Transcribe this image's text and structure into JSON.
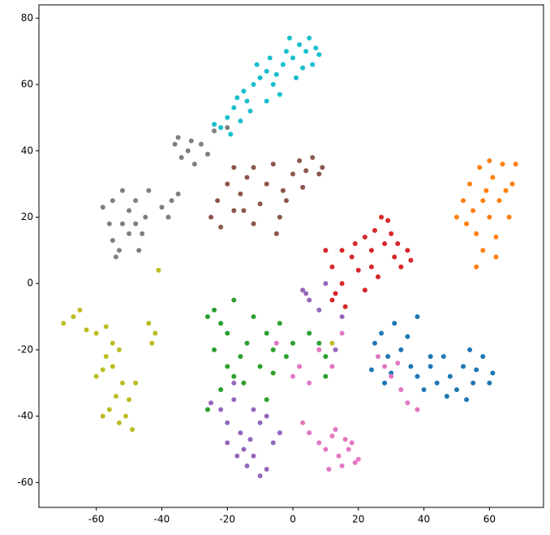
{
  "chart_data": {
    "type": "scatter",
    "xlim": [
      -77.5,
      76.5
    ],
    "ylim": [
      -67.5,
      84
    ],
    "xticks": [
      -60,
      -40,
      -20,
      0,
      20,
      40,
      60
    ],
    "yticks": [
      -60,
      -40,
      -20,
      0,
      20,
      40,
      60,
      80
    ],
    "grid": false,
    "series": [
      {
        "color": "#17becf",
        "x": [
          -22,
          -20,
          -18,
          -17,
          -15,
          -14,
          -12,
          -10,
          -11,
          -8,
          -7,
          -6,
          -5,
          -3,
          -2,
          0,
          2,
          3,
          4,
          5,
          7,
          8,
          1,
          -4,
          -8,
          -13,
          -16,
          -1,
          6,
          -19,
          -24
        ],
        "values": [
          47,
          50,
          53,
          56,
          58,
          55,
          60,
          62,
          66,
          64,
          68,
          60,
          63,
          66,
          70,
          68,
          72,
          65,
          70,
          74,
          71,
          69,
          62,
          57,
          55,
          52,
          49,
          74,
          66,
          45,
          48
        ]
      },
      {
        "color": "#8c564b",
        "x": [
          -25,
          -23,
          -20,
          -18,
          -16,
          -14,
          -12,
          -10,
          -8,
          -6,
          -4,
          -5,
          -3,
          0,
          2,
          4,
          6,
          8,
          9,
          -12,
          -22,
          -18,
          -2,
          3,
          -15
        ],
        "values": [
          20,
          25,
          30,
          22,
          27,
          32,
          35,
          24,
          30,
          36,
          20,
          15,
          28,
          33,
          37,
          34,
          38,
          33,
          35,
          18,
          17,
          35,
          25,
          29,
          22
        ]
      },
      {
        "color": "#7f7f7f",
        "x": [
          -58,
          -56,
          -55,
          -54,
          -52,
          -50,
          -50,
          -48,
          -47,
          -45,
          -44,
          -52,
          -48,
          -55,
          -53,
          -46,
          -40,
          -37,
          -35,
          -38,
          -36,
          -34,
          -32,
          -30,
          -28,
          -26,
          -24,
          -20,
          -35,
          -31
        ],
        "values": [
          23,
          18,
          13,
          8,
          28,
          22,
          15,
          25,
          10,
          20,
          28,
          18,
          18,
          25,
          10,
          15,
          23,
          25,
          27,
          20,
          42,
          38,
          40,
          36,
          42,
          39,
          46,
          47,
          44,
          43
        ]
      },
      {
        "color": "#ff7f0e",
        "x": [
          50,
          52,
          54,
          55,
          56,
          57,
          58,
          59,
          60,
          61,
          62,
          63,
          64,
          65,
          66,
          67,
          68,
          62,
          58,
          53,
          56,
          60
        ],
        "values": [
          20,
          25,
          30,
          22,
          15,
          35,
          10,
          28,
          20,
          32,
          14,
          25,
          36,
          28,
          20,
          30,
          36,
          8,
          25,
          18,
          5,
          37
        ]
      },
      {
        "color": "#d62728",
        "x": [
          10,
          12,
          13,
          15,
          15,
          18,
          20,
          22,
          24,
          25,
          27,
          28,
          30,
          31,
          33,
          35,
          36,
          26,
          22,
          19,
          29,
          16,
          12,
          24,
          32
        ],
        "values": [
          10,
          5,
          -3,
          0,
          10,
          8,
          4,
          14,
          10,
          16,
          20,
          12,
          15,
          8,
          5,
          10,
          7,
          2,
          -2,
          12,
          19,
          -7,
          -5,
          5,
          12
        ]
      },
      {
        "color": "#1f77b4",
        "x": [
          38,
          40,
          42,
          44,
          46,
          48,
          50,
          52,
          54,
          55,
          56,
          58,
          60,
          61,
          53,
          47,
          42,
          25,
          27,
          29,
          31,
          33,
          35,
          36,
          30,
          24,
          28,
          38
        ],
        "values": [
          -28,
          -32,
          -25,
          -30,
          -22,
          -28,
          -32,
          -25,
          -20,
          -30,
          -26,
          -22,
          -30,
          -27,
          -35,
          -34,
          -22,
          -18,
          -15,
          -22,
          -12,
          -20,
          -16,
          -25,
          -27,
          -26,
          -30,
          -10
        ]
      },
      {
        "color": "#e377c2",
        "x": [
          5,
          8,
          10,
          12,
          14,
          15,
          17,
          18,
          19,
          20,
          11,
          16,
          13,
          3,
          0,
          2,
          5,
          8,
          -5,
          26,
          28,
          30,
          33,
          35,
          38,
          32,
          12,
          15
        ],
        "values": [
          -45,
          -48,
          -50,
          -46,
          -52,
          -55,
          -50,
          -48,
          -54,
          -53,
          -56,
          -47,
          -44,
          -42,
          -28,
          -25,
          -30,
          -20,
          -18,
          -22,
          -25,
          -28,
          -32,
          -36,
          -38,
          -24,
          -25,
          -15
        ]
      },
      {
        "color": "#9467bd",
        "x": [
          -22,
          -20,
          -18,
          -16,
          -15,
          -14,
          -12,
          -10,
          -8,
          -6,
          -10,
          -12,
          -17,
          -13,
          -8,
          -4,
          -20,
          -18,
          -25,
          3,
          5,
          8,
          4,
          10,
          15,
          13
        ],
        "values": [
          -38,
          -42,
          -35,
          -45,
          -50,
          -55,
          -52,
          -58,
          -56,
          -48,
          -42,
          -38,
          -52,
          -47,
          -40,
          -45,
          -48,
          -30,
          -36,
          -2,
          -5,
          -8,
          -3,
          0,
          -10,
          -20
        ]
      },
      {
        "color": "#2ca02c",
        "x": [
          -26,
          -24,
          -22,
          -20,
          -18,
          -16,
          -14,
          -12,
          -10,
          -8,
          -6,
          -4,
          -2,
          0,
          -20,
          -24,
          -15,
          -18,
          -6,
          -8,
          5,
          8,
          10,
          -22,
          -26,
          10
        ],
        "values": [
          -10,
          -8,
          -12,
          -15,
          -5,
          -22,
          -18,
          -10,
          -25,
          -15,
          -20,
          -12,
          -22,
          -18,
          -25,
          -20,
          -30,
          -28,
          -27,
          -35,
          -15,
          -18,
          -22,
          -32,
          -38,
          -28
        ]
      },
      {
        "color": "#bcbd22",
        "x": [
          -70,
          -67,
          -65,
          -63,
          -60,
          -57,
          -55,
          -57,
          -55,
          -53,
          -52,
          -54,
          -56,
          -53,
          -51,
          -50,
          -48,
          -49,
          -58,
          -60,
          -58,
          -44,
          -42,
          -43,
          -41,
          12
        ],
        "values": [
          -12,
          -10,
          -8,
          -14,
          -15,
          -13,
          -18,
          -22,
          -25,
          -20,
          -30,
          -34,
          -38,
          -42,
          -40,
          -35,
          -30,
          -44,
          -40,
          -28,
          -26,
          -12,
          -15,
          -18,
          4,
          -18
        ]
      }
    ]
  }
}
